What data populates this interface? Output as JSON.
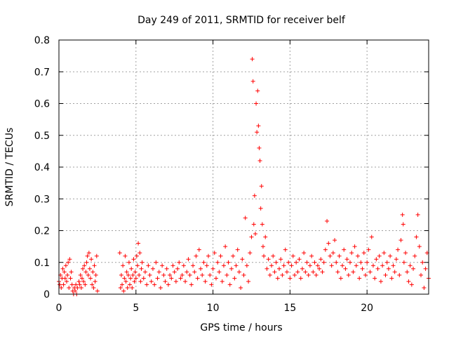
{
  "chart_data": {
    "type": "scatter",
    "title": "Day 249 of 2011, SRMTID for receiver belf",
    "xlabel": "GPS time / hours",
    "ylabel": "SRMTID / TECUs",
    "xlim": [
      0,
      24
    ],
    "ylim": [
      0,
      0.8
    ],
    "x_ticks": [
      0,
      5,
      10,
      15,
      20
    ],
    "x_tick_labels": [
      "0",
      "5",
      "10",
      "15",
      "20"
    ],
    "y_ticks": [
      0,
      0.1,
      0.2,
      0.3,
      0.4,
      0.5,
      0.6,
      0.7,
      0.8
    ],
    "y_tick_labels": [
      "0",
      "0.1",
      "0.2",
      "0.3",
      "0.4",
      "0.5",
      "0.6",
      "0.7",
      "0.8"
    ],
    "grid": true,
    "marker": "+",
    "color": "#ff0000",
    "series": [
      {
        "name": "SRMTID",
        "points": [
          [
            0.0,
            0.04
          ],
          [
            0.05,
            0.03
          ],
          [
            0.1,
            0.06
          ],
          [
            0.15,
            0.02
          ],
          [
            0.2,
            0.05
          ],
          [
            0.25,
            0.08
          ],
          [
            0.3,
            0.03
          ],
          [
            0.35,
            0.07
          ],
          [
            0.4,
            0.05
          ],
          [
            0.45,
            0.09
          ],
          [
            0.5,
            0.04
          ],
          [
            0.55,
            0.06
          ],
          [
            0.6,
            0.1
          ],
          [
            0.65,
            0.02
          ],
          [
            0.7,
            0.11
          ],
          [
            0.75,
            0.05
          ],
          [
            0.8,
            0.07
          ],
          [
            0.85,
            0.03
          ],
          [
            0.9,
            0.01
          ],
          [
            0.95,
            0.0
          ],
          [
            1.0,
            0.02
          ],
          [
            1.05,
            0.01
          ],
          [
            1.1,
            0.03
          ],
          [
            1.15,
            0.0
          ],
          [
            1.2,
            0.02
          ],
          [
            1.3,
            0.04
          ],
          [
            1.35,
            0.03
          ],
          [
            1.4,
            0.06
          ],
          [
            1.45,
            0.02
          ],
          [
            1.5,
            0.05
          ],
          [
            1.55,
            0.08
          ],
          [
            1.6,
            0.04
          ],
          [
            1.65,
            0.09
          ],
          [
            1.7,
            0.03
          ],
          [
            1.75,
            0.07
          ],
          [
            1.8,
            0.1
          ],
          [
            1.85,
            0.12
          ],
          [
            1.9,
            0.06
          ],
          [
            1.95,
            0.13
          ],
          [
            2.0,
            0.08
          ],
          [
            2.05,
            0.05
          ],
          [
            2.1,
            0.11
          ],
          [
            2.15,
            0.03
          ],
          [
            2.2,
            0.07
          ],
          [
            2.25,
            0.02
          ],
          [
            2.3,
            0.09
          ],
          [
            2.35,
            0.04
          ],
          [
            2.4,
            0.06
          ],
          [
            2.45,
            0.12
          ],
          [
            2.5,
            0.01
          ],
          [
            3.95,
            0.13
          ],
          [
            4.0,
            0.02
          ],
          [
            4.05,
            0.06
          ],
          [
            4.1,
            0.03
          ],
          [
            4.15,
            0.09
          ],
          [
            4.2,
            0.01
          ],
          [
            4.25,
            0.05
          ],
          [
            4.3,
            0.12
          ],
          [
            4.35,
            0.04
          ],
          [
            4.4,
            0.07
          ],
          [
            4.45,
            0.02
          ],
          [
            4.5,
            0.06
          ],
          [
            4.55,
            0.1
          ],
          [
            4.6,
            0.03
          ],
          [
            4.65,
            0.05
          ],
          [
            4.7,
            0.08
          ],
          [
            4.75,
            0.02
          ],
          [
            4.8,
            0.06
          ],
          [
            4.85,
            0.11
          ],
          [
            4.9,
            0.04
          ],
          [
            4.95,
            0.07
          ],
          [
            5.0,
            0.05
          ],
          [
            5.05,
            0.12
          ],
          [
            5.1,
            0.09
          ],
          [
            5.15,
            0.16
          ],
          [
            5.2,
            0.06
          ],
          [
            5.25,
            0.13
          ],
          [
            5.3,
            0.04
          ],
          [
            5.35,
            0.08
          ],
          [
            5.4,
            0.1
          ],
          [
            5.5,
            0.05
          ],
          [
            5.6,
            0.07
          ],
          [
            5.7,
            0.03
          ],
          [
            5.8,
            0.09
          ],
          [
            5.9,
            0.06
          ],
          [
            6.0,
            0.04
          ],
          [
            6.1,
            0.08
          ],
          [
            6.2,
            0.03
          ],
          [
            6.3,
            0.1
          ],
          [
            6.4,
            0.05
          ],
          [
            6.5,
            0.07
          ],
          [
            6.6,
            0.02
          ],
          [
            6.7,
            0.09
          ],
          [
            6.8,
            0.06
          ],
          [
            6.9,
            0.04
          ],
          [
            7.0,
            0.08
          ],
          [
            7.1,
            0.03
          ],
          [
            7.2,
            0.06
          ],
          [
            7.3,
            0.05
          ],
          [
            7.4,
            0.09
          ],
          [
            7.5,
            0.07
          ],
          [
            7.6,
            0.04
          ],
          [
            7.7,
            0.08
          ],
          [
            7.8,
            0.1
          ],
          [
            7.9,
            0.05
          ],
          [
            8.0,
            0.06
          ],
          [
            8.1,
            0.09
          ],
          [
            8.2,
            0.04
          ],
          [
            8.3,
            0.07
          ],
          [
            8.4,
            0.11
          ],
          [
            8.5,
            0.06
          ],
          [
            8.6,
            0.03
          ],
          [
            8.7,
            0.09
          ],
          [
            8.8,
            0.07
          ],
          [
            8.9,
            0.12
          ],
          [
            9.0,
            0.05
          ],
          [
            9.1,
            0.14
          ],
          [
            9.2,
            0.08
          ],
          [
            9.3,
            0.06
          ],
          [
            9.4,
            0.1
          ],
          [
            9.5,
            0.04
          ],
          [
            9.6,
            0.09
          ],
          [
            9.7,
            0.12
          ],
          [
            9.8,
            0.06
          ],
          [
            9.9,
            0.03
          ],
          [
            10.0,
            0.08
          ],
          [
            10.1,
            0.13
          ],
          [
            10.2,
            0.05
          ],
          [
            10.3,
            0.1
          ],
          [
            10.4,
            0.07
          ],
          [
            10.5,
            0.12
          ],
          [
            10.6,
            0.04
          ],
          [
            10.7,
            0.09
          ],
          [
            10.8,
            0.15
          ],
          [
            10.9,
            0.06
          ],
          [
            11.0,
            0.1
          ],
          [
            11.1,
            0.03
          ],
          [
            11.2,
            0.08
          ],
          [
            11.3,
            0.12
          ],
          [
            11.4,
            0.05
          ],
          [
            11.5,
            0.09
          ],
          [
            11.6,
            0.14
          ],
          [
            11.7,
            0.07
          ],
          [
            11.8,
            0.02
          ],
          [
            11.9,
            0.11
          ],
          [
            12.0,
            0.06
          ],
          [
            12.1,
            0.24
          ],
          [
            12.2,
            0.09
          ],
          [
            12.3,
            0.04
          ],
          [
            12.4,
            0.13
          ],
          [
            12.5,
            0.18
          ],
          [
            12.55,
            0.74
          ],
          [
            12.6,
            0.67
          ],
          [
            12.65,
            0.22
          ],
          [
            12.7,
            0.31
          ],
          [
            12.75,
            0.19
          ],
          [
            12.8,
            0.6
          ],
          [
            12.85,
            0.51
          ],
          [
            12.9,
            0.64
          ],
          [
            12.95,
            0.53
          ],
          [
            13.0,
            0.46
          ],
          [
            13.05,
            0.42
          ],
          [
            13.1,
            0.27
          ],
          [
            13.15,
            0.34
          ],
          [
            13.2,
            0.22
          ],
          [
            13.25,
            0.15
          ],
          [
            13.3,
            0.12
          ],
          [
            13.4,
            0.18
          ],
          [
            13.5,
            0.08
          ],
          [
            13.6,
            0.11
          ],
          [
            13.7,
            0.06
          ],
          [
            13.8,
            0.09
          ],
          [
            13.9,
            0.12
          ],
          [
            14.0,
            0.07
          ],
          [
            14.1,
            0.1
          ],
          [
            14.2,
            0.05
          ],
          [
            14.3,
            0.08
          ],
          [
            14.4,
            0.11
          ],
          [
            14.5,
            0.06
          ],
          [
            14.6,
            0.09
          ],
          [
            14.7,
            0.14
          ],
          [
            14.8,
            0.07
          ],
          [
            14.9,
            0.1
          ],
          [
            15.0,
            0.05
          ],
          [
            15.1,
            0.09
          ],
          [
            15.2,
            0.12
          ],
          [
            15.3,
            0.06
          ],
          [
            15.4,
            0.1
          ],
          [
            15.5,
            0.07
          ],
          [
            15.6,
            0.11
          ],
          [
            15.7,
            0.05
          ],
          [
            15.8,
            0.08
          ],
          [
            15.9,
            0.13
          ],
          [
            16.0,
            0.07
          ],
          [
            16.1,
            0.1
          ],
          [
            16.2,
            0.06
          ],
          [
            16.3,
            0.09
          ],
          [
            16.4,
            0.12
          ],
          [
            16.5,
            0.07
          ],
          [
            16.6,
            0.1
          ],
          [
            16.7,
            0.06
          ],
          [
            16.8,
            0.09
          ],
          [
            16.9,
            0.08
          ],
          [
            17.0,
            0.11
          ],
          [
            17.1,
            0.07
          ],
          [
            17.2,
            0.1
          ],
          [
            17.3,
            0.14
          ],
          [
            17.4,
            0.23
          ],
          [
            17.5,
            0.16
          ],
          [
            17.6,
            0.12
          ],
          [
            17.7,
            0.09
          ],
          [
            17.8,
            0.13
          ],
          [
            17.9,
            0.17
          ],
          [
            18.0,
            0.1
          ],
          [
            18.1,
            0.07
          ],
          [
            18.2,
            0.12
          ],
          [
            18.3,
            0.05
          ],
          [
            18.4,
            0.09
          ],
          [
            18.5,
            0.14
          ],
          [
            18.6,
            0.08
          ],
          [
            18.7,
            0.11
          ],
          [
            18.8,
            0.06
          ],
          [
            18.9,
            0.1
          ],
          [
            19.0,
            0.13
          ],
          [
            19.1,
            0.07
          ],
          [
            19.2,
            0.15
          ],
          [
            19.3,
            0.09
          ],
          [
            19.4,
            0.12
          ],
          [
            19.5,
            0.05
          ],
          [
            19.6,
            0.1
          ],
          [
            19.7,
            0.08
          ],
          [
            19.8,
            0.13
          ],
          [
            19.9,
            0.06
          ],
          [
            20.0,
            0.1
          ],
          [
            20.1,
            0.14
          ],
          [
            20.2,
            0.07
          ],
          [
            20.3,
            0.18
          ],
          [
            20.4,
            0.09
          ],
          [
            20.5,
            0.05
          ],
          [
            20.6,
            0.11
          ],
          [
            20.7,
            0.08
          ],
          [
            20.8,
            0.12
          ],
          [
            20.9,
            0.04
          ],
          [
            21.0,
            0.09
          ],
          [
            21.1,
            0.13
          ],
          [
            21.2,
            0.06
          ],
          [
            21.3,
            0.1
          ],
          [
            21.4,
            0.08
          ],
          [
            21.5,
            0.12
          ],
          [
            21.6,
            0.05
          ],
          [
            21.7,
            0.09
          ],
          [
            21.8,
            0.07
          ],
          [
            21.9,
            0.11
          ],
          [
            22.0,
            0.14
          ],
          [
            22.1,
            0.06
          ],
          [
            22.2,
            0.17
          ],
          [
            22.3,
            0.25
          ],
          [
            22.35,
            0.22
          ],
          [
            22.4,
            0.1
          ],
          [
            22.5,
            0.13
          ],
          [
            22.6,
            0.07
          ],
          [
            22.7,
            0.04
          ],
          [
            22.8,
            0.09
          ],
          [
            22.9,
            0.03
          ],
          [
            23.0,
            0.08
          ],
          [
            23.1,
            0.12
          ],
          [
            23.2,
            0.18
          ],
          [
            23.3,
            0.25
          ],
          [
            23.4,
            0.15
          ],
          [
            23.5,
            0.06
          ],
          [
            23.6,
            0.1
          ],
          [
            23.7,
            0.02
          ],
          [
            23.8,
            0.08
          ],
          [
            23.9,
            0.13
          ],
          [
            24.0,
            0.05
          ]
        ]
      }
    ]
  }
}
